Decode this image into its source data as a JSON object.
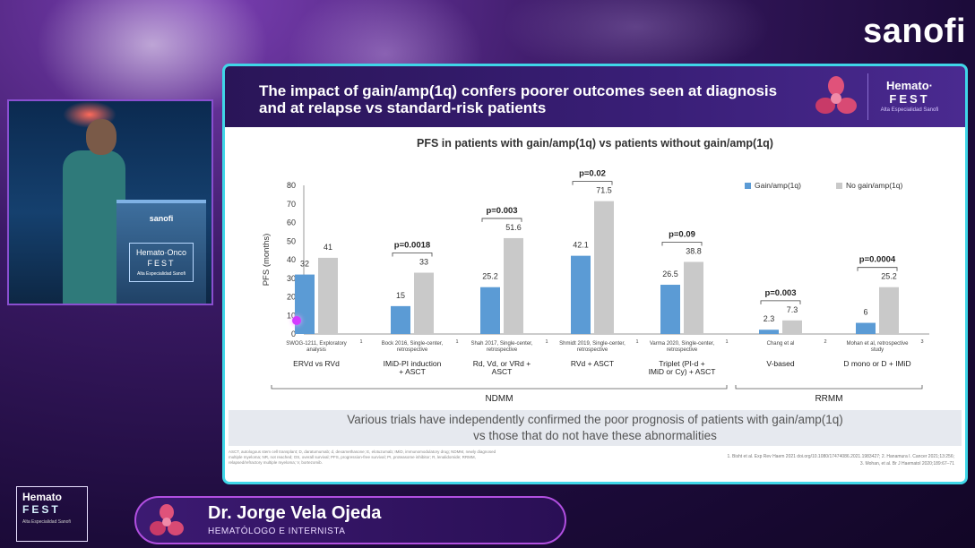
{
  "brand": "sanofi",
  "podium": {
    "brand": "sanofi",
    "logo_line1": "Hemato·Onco",
    "logo_line2": "FEST",
    "logo_line3": "Alta Especialidad Sanofi"
  },
  "slide": {
    "title": "The impact of gain/amp(1q) confers poorer outcomes seen at diagnosis and at relapse vs standard-risk patients",
    "logo_line1": "Hemato·",
    "logo_line2": "FEST",
    "logo_line3": "Alta Especialidad Sanofi",
    "conclusion_line1": "Various trials have independently confirmed the poor prognosis of patients with gain/amp(1q)",
    "conclusion_line2": "vs those that do not have these abnormalities",
    "footnotes": "ASCT, autologous stem cell transplant; D, daratumumab; d, dexamethasone; E, elotuzumab; IMiD, immunomodulatory drug; NDMM, newly diagnosed multiple myeloma; NR, not reached; OS, overall survival; PFS, progression-free survival; PI, proteasome inhibitor; R, lenalidomide; RRMM, relapsed/refractory multiple myeloma; V, bortezomib.",
    "refs_line1": "1. Bisht et al. Exp Rev Haem 2021 doi.org/10.1080/17474086.2021.1983427; 2. Hanamura I. Cancer 2021;13:256;",
    "refs_line2": "3. Mohan, et al. Br J Haematol 2020;189:67–71"
  },
  "chart_data": {
    "type": "bar",
    "title": "PFS in patients with gain/amp(1q) vs patients without gain/amp(1q)",
    "ylabel": "PFS (months)",
    "ylim": [
      0,
      80
    ],
    "yticks": [
      0,
      10,
      20,
      30,
      40,
      50,
      60,
      70,
      80
    ],
    "grid": false,
    "legend_position": "top-right",
    "series": [
      {
        "name": "Gain/amp(1q)",
        "color": "#5b9bd5",
        "values": [
          32,
          15,
          25.2,
          42.1,
          26.5,
          2.3,
          6
        ],
        "labels": [
          "32",
          "15",
          "25.2",
          "42.1",
          "26.5",
          "2.3",
          "6"
        ]
      },
      {
        "name": "No gain/amp(1q)",
        "color": "#c9c9c9",
        "values": [
          41,
          33,
          51.6,
          71.5,
          38.8,
          7.3,
          25.2
        ],
        "labels": [
          "41",
          "33",
          "51.6",
          "71.5",
          "38.8",
          "7.3",
          "25.2"
        ]
      }
    ],
    "studies": [
      {
        "study": "SWOG-1211, Exploratory analysis",
        "sup": "1",
        "treatment": "ERVd vs RVd",
        "pvalue": ""
      },
      {
        "study": "Bock 2016, Single-center, retrospective",
        "sup": "1",
        "treatment": "IMiD-PI induction + ASCT",
        "pvalue": "p=0.0018"
      },
      {
        "study": "Shah 2017, Single-center, retrospective",
        "sup": "1",
        "treatment": "Rd, Vd, or VRd + ASCT",
        "pvalue": "p=0.003"
      },
      {
        "study": "Shmidt 2019, Single-center, retrospective",
        "sup": "1",
        "treatment": "RVd + ASCT",
        "pvalue": "p=0.02"
      },
      {
        "study": "Varma 2020, Single-center, retrospective",
        "sup": "1",
        "treatment": "Triplet (PI-d + IMiD or Cy) + ASCT",
        "pvalue": "p=0.09"
      },
      {
        "study": "Chang et al",
        "sup": "2",
        "treatment": "V-based",
        "pvalue": "p=0.003"
      },
      {
        "study": "Mohan et al, retrospective study",
        "sup": "3",
        "treatment": "D mono or D + IMiD",
        "pvalue": "p=0.0004"
      }
    ],
    "groups": [
      {
        "label": "NDMM",
        "span": [
          0,
          4
        ]
      },
      {
        "label": "RRMM",
        "span": [
          5,
          6
        ]
      }
    ]
  },
  "speaker": {
    "name": "Dr. Jorge Vela Ojeda",
    "role": "HEMATÓLOGO E INTERNISTA"
  },
  "event_logo": {
    "line1": "Hemato",
    "line2": "FEST",
    "line3": "Alta Especialidad Sanofi"
  }
}
